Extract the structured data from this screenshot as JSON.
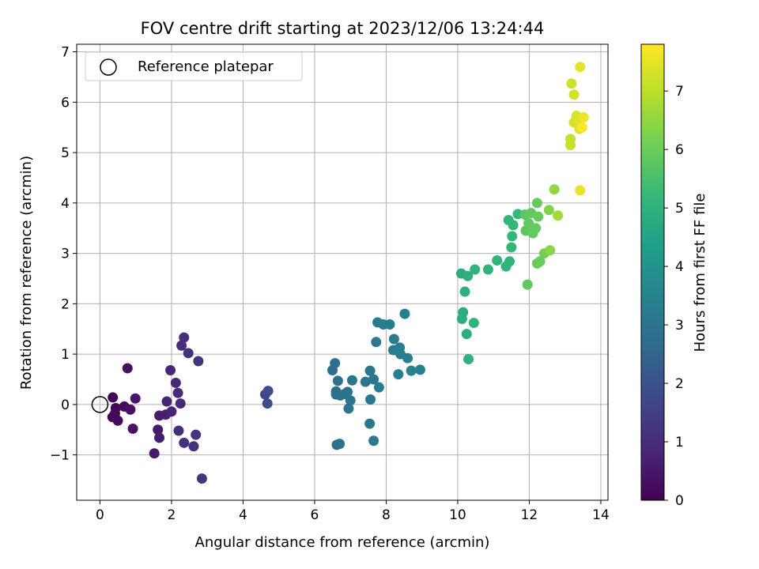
{
  "chart_data": {
    "type": "scatter",
    "title": "FOV centre drift starting at 2023/12/06 13:24:44",
    "xlabel": "Angular distance from reference (arcmin)",
    "ylabel": "Rotation from reference (arcmin)",
    "xlim": [
      -0.65,
      14.2
    ],
    "ylim": [
      -1.9,
      7.15
    ],
    "xticks": [
      0,
      2,
      4,
      6,
      8,
      10,
      12,
      14
    ],
    "xtick_labels": [
      "0",
      "2",
      "4",
      "6",
      "8",
      "10",
      "12",
      "14"
    ],
    "yticks": [
      -1,
      0,
      1,
      2,
      3,
      4,
      5,
      6,
      7
    ],
    "ytick_labels": [
      "−1",
      "0",
      "1",
      "2",
      "3",
      "4",
      "5",
      "6",
      "7"
    ],
    "grid": true,
    "legend": {
      "position": "top-left",
      "entries": [
        "Reference platepar"
      ]
    },
    "colorbar": {
      "label": "Hours from first FF file",
      "range": [
        0,
        7.8
      ],
      "ticks": [
        0,
        1,
        2,
        3,
        4,
        5,
        6,
        7
      ],
      "tick_labels": [
        "0",
        "1",
        "2",
        "3",
        "4",
        "5",
        "6",
        "7"
      ],
      "colormap": "viridis"
    },
    "reference": {
      "x": 0,
      "y": 0,
      "label": "Reference platepar"
    },
    "colors": {
      "viridis": [
        "#440154",
        "#482878",
        "#3e4989",
        "#31688e",
        "#26828e",
        "#1f9e89",
        "#35b779",
        "#6ece58",
        "#b5de2b",
        "#fde725"
      ],
      "grid": "#b0b0b0"
    },
    "points": [
      [
        0.36,
        0.14,
        0.05
      ],
      [
        0.44,
        -0.07,
        0.1
      ],
      [
        0.35,
        -0.25,
        0.12
      ],
      [
        0.42,
        -0.18,
        0.15
      ],
      [
        0.5,
        -0.32,
        0.2
      ],
      [
        0.68,
        -0.04,
        0.25
      ],
      [
        0.77,
        0.72,
        0.3
      ],
      [
        0.85,
        -0.1,
        0.35
      ],
      [
        0.92,
        -0.48,
        0.4
      ],
      [
        0.99,
        0.12,
        0.45
      ],
      [
        1.52,
        -0.97,
        0.5
      ],
      [
        1.62,
        -0.5,
        0.55
      ],
      [
        1.66,
        -0.22,
        0.6
      ],
      [
        1.66,
        -0.66,
        0.65
      ],
      [
        1.84,
        -0.2,
        0.7
      ],
      [
        1.87,
        0.06,
        0.75
      ],
      [
        2.0,
        -0.14,
        0.8
      ],
      [
        1.97,
        0.68,
        0.85
      ],
      [
        2.12,
        0.43,
        0.9
      ],
      [
        2.18,
        0.23,
        0.95
      ],
      [
        2.25,
        0.02,
        1.0
      ],
      [
        2.2,
        -0.52,
        1.02
      ],
      [
        2.28,
        1.17,
        1.05
      ],
      [
        2.35,
        1.33,
        1.08
      ],
      [
        2.35,
        -0.76,
        1.1
      ],
      [
        2.47,
        1.02,
        1.12
      ],
      [
        2.62,
        -0.83,
        1.14
      ],
      [
        2.68,
        -0.6,
        1.16
      ],
      [
        2.75,
        0.86,
        1.18
      ],
      [
        2.85,
        -1.47,
        1.2
      ],
      [
        4.62,
        0.2,
        1.7
      ],
      [
        4.7,
        0.27,
        1.75
      ],
      [
        4.68,
        0.02,
        1.8
      ],
      [
        6.5,
        0.68,
        2.8
      ],
      [
        6.57,
        0.82,
        2.82
      ],
      [
        6.6,
        0.26,
        2.84
      ],
      [
        6.6,
        0.2,
        2.86
      ],
      [
        6.62,
        -0.8,
        2.88
      ],
      [
        6.65,
        0.47,
        2.9
      ],
      [
        6.7,
        -0.78,
        2.92
      ],
      [
        6.72,
        0.18,
        2.94
      ],
      [
        6.84,
        0.21,
        2.96
      ],
      [
        6.92,
        0.25,
        2.98
      ],
      [
        6.95,
        -0.08,
        3.0
      ],
      [
        7.0,
        0.08,
        3.02
      ],
      [
        7.05,
        0.48,
        3.04
      ],
      [
        7.42,
        0.45,
        3.06
      ],
      [
        7.55,
        0.67,
        3.08
      ],
      [
        7.56,
        0.1,
        3.1
      ],
      [
        7.54,
        -0.38,
        3.12
      ],
      [
        7.65,
        0.5,
        3.14
      ],
      [
        7.72,
        1.24,
        3.16
      ],
      [
        7.65,
        -0.72,
        3.18
      ],
      [
        7.76,
        1.63,
        3.2
      ],
      [
        7.8,
        0.34,
        3.22
      ],
      [
        7.92,
        1.59,
        3.24
      ],
      [
        8.1,
        1.59,
        3.26
      ],
      [
        8.22,
        1.3,
        3.28
      ],
      [
        8.2,
        1.08,
        3.3
      ],
      [
        8.38,
        1.13,
        3.32
      ],
      [
        8.4,
        1.0,
        3.34
      ],
      [
        8.34,
        0.6,
        3.36
      ],
      [
        8.52,
        1.8,
        3.38
      ],
      [
        8.6,
        0.92,
        3.4
      ],
      [
        8.7,
        0.67,
        3.42
      ],
      [
        8.95,
        0.69,
        3.44
      ],
      [
        10.1,
        2.6,
        4.85
      ],
      [
        10.15,
        1.83,
        4.87
      ],
      [
        10.12,
        1.7,
        4.89
      ],
      [
        10.2,
        2.24,
        4.91
      ],
      [
        10.25,
        1.4,
        4.93
      ],
      [
        10.28,
        2.55,
        4.95
      ],
      [
        10.3,
        0.9,
        4.97
      ],
      [
        10.48,
        2.68,
        4.99
      ],
      [
        10.45,
        1.62,
        5.01
      ],
      [
        10.85,
        2.68,
        5.03
      ],
      [
        11.1,
        2.86,
        5.05
      ],
      [
        11.35,
        2.74,
        5.07
      ],
      [
        11.45,
        2.84,
        5.09
      ],
      [
        11.42,
        3.66,
        5.11
      ],
      [
        11.5,
        3.12,
        5.13
      ],
      [
        11.52,
        3.34,
        5.15
      ],
      [
        11.55,
        3.56,
        5.17
      ],
      [
        11.68,
        3.78,
        5.19
      ],
      [
        11.88,
        3.77,
        5.8
      ],
      [
        11.9,
        3.45,
        5.82
      ],
      [
        11.95,
        2.38,
        5.84
      ],
      [
        11.98,
        3.6,
        5.86
      ],
      [
        12.05,
        3.8,
        5.88
      ],
      [
        12.1,
        3.4,
        5.9
      ],
      [
        12.18,
        3.5,
        5.92
      ],
      [
        12.22,
        4.0,
        5.94
      ],
      [
        12.25,
        3.73,
        5.96
      ],
      [
        12.22,
        2.8,
        5.98
      ],
      [
        12.3,
        2.84,
        6.0
      ],
      [
        12.42,
        3.0,
        6.1
      ],
      [
        12.55,
        3.86,
        6.3
      ],
      [
        12.58,
        3.06,
        6.4
      ],
      [
        12.7,
        4.27,
        6.5
      ],
      [
        12.8,
        3.75,
        6.7
      ],
      [
        13.15,
        5.27,
        7.1
      ],
      [
        13.15,
        5.15,
        7.15
      ],
      [
        13.18,
        6.37,
        7.2
      ],
      [
        13.25,
        6.15,
        7.25
      ],
      [
        13.25,
        5.6,
        7.3
      ],
      [
        13.32,
        5.73,
        7.35
      ],
      [
        13.38,
        5.62,
        7.4
      ],
      [
        13.4,
        5.47,
        7.45
      ],
      [
        13.42,
        6.7,
        7.5
      ],
      [
        13.42,
        4.25,
        7.55
      ],
      [
        13.52,
        5.7,
        7.6
      ],
      [
        13.48,
        5.5,
        7.75
      ]
    ]
  }
}
